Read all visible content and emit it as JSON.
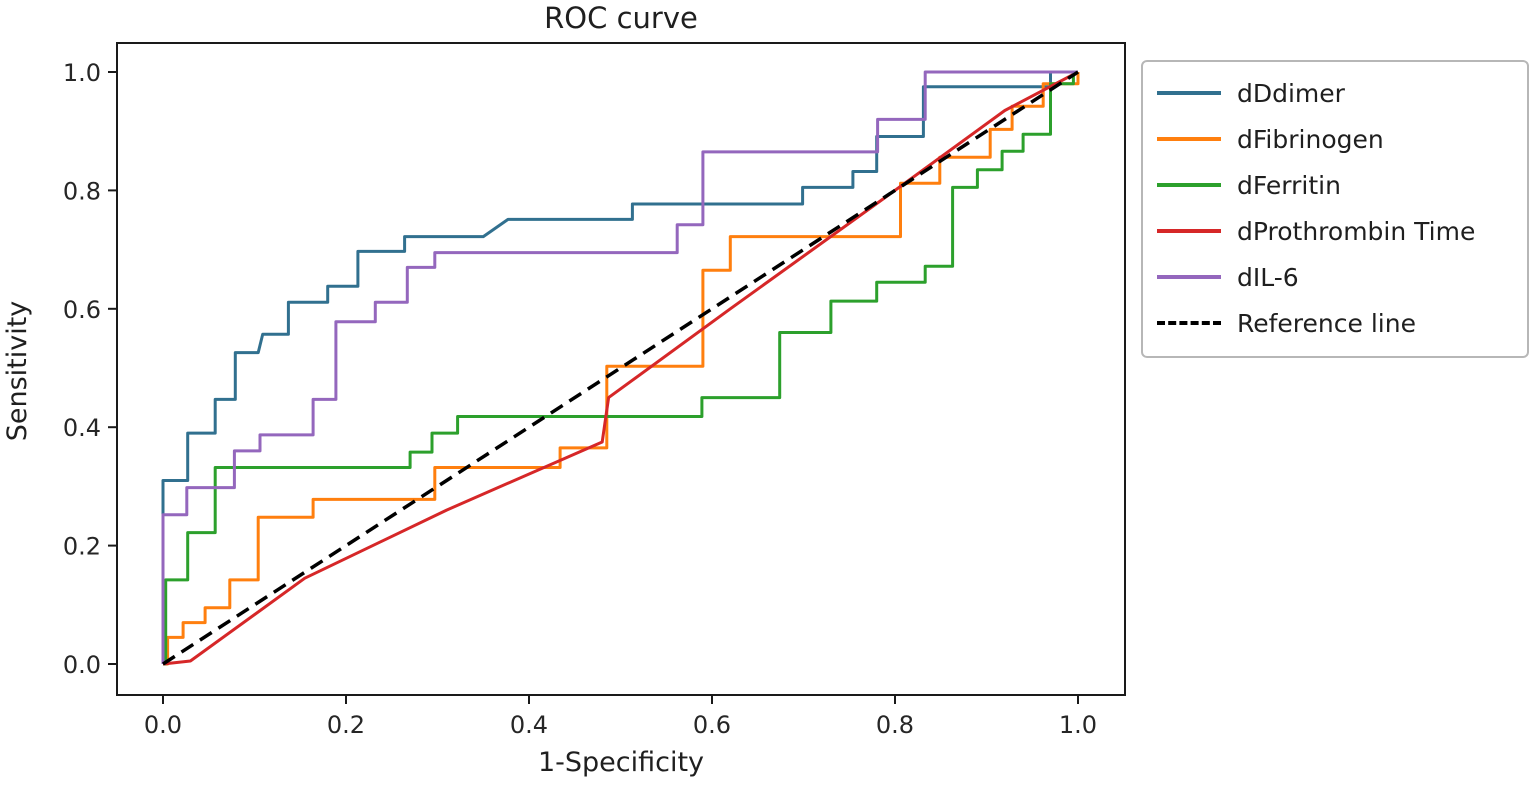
{
  "chart_data": {
    "type": "line",
    "title": "ROC curve",
    "xlabel": "1-Specificity",
    "ylabel": "Sensitivity",
    "xlim": [
      -0.045,
      1.05
    ],
    "ylim": [
      -0.045,
      1.05
    ],
    "grid": false,
    "legend_position": "outside-right",
    "xticks": {
      "values": [
        0.0,
        0.2,
        0.4,
        0.6,
        0.8,
        1.0
      ],
      "labels": [
        "0.0",
        "0.2",
        "0.4",
        "0.6",
        "0.8",
        "1.0"
      ]
    },
    "yticks": {
      "values": [
        0.0,
        0.2,
        0.4,
        0.6,
        0.8,
        1.0
      ],
      "labels": [
        "0.0",
        "0.2",
        "0.4",
        "0.6",
        "0.8",
        "1.0"
      ]
    },
    "axis_color": "#1a1a1a",
    "legend_border_color": "#b7b7b7",
    "series": [
      {
        "name": "dDdimer",
        "color": "#31708f",
        "style": "solid",
        "points": [
          [
            0,
            0
          ],
          [
            0,
            0.31
          ],
          [
            0.027,
            0.31
          ],
          [
            0.027,
            0.39
          ],
          [
            0.057,
            0.39
          ],
          [
            0.057,
            0.447
          ],
          [
            0.079,
            0.447
          ],
          [
            0.079,
            0.526
          ],
          [
            0.104,
            0.526
          ],
          [
            0.109,
            0.557
          ],
          [
            0.137,
            0.557
          ],
          [
            0.137,
            0.611
          ],
          [
            0.18,
            0.611
          ],
          [
            0.18,
            0.638
          ],
          [
            0.213,
            0.638
          ],
          [
            0.213,
            0.697
          ],
          [
            0.264,
            0.697
          ],
          [
            0.264,
            0.722
          ],
          [
            0.35,
            0.722
          ],
          [
            0.377,
            0.751
          ],
          [
            0.513,
            0.751
          ],
          [
            0.513,
            0.777
          ],
          [
            0.699,
            0.777
          ],
          [
            0.699,
            0.805
          ],
          [
            0.754,
            0.805
          ],
          [
            0.754,
            0.832
          ],
          [
            0.78,
            0.832
          ],
          [
            0.78,
            0.891
          ],
          [
            0.831,
            0.891
          ],
          [
            0.831,
            0.975
          ],
          [
            0.97,
            0.975
          ],
          [
            0.97,
            1
          ],
          [
            1,
            1
          ]
        ]
      },
      {
        "name": "dFibrinogen",
        "color": "#ff7f0e",
        "style": "solid",
        "points": [
          [
            0,
            0
          ],
          [
            0.005,
            0
          ],
          [
            0.005,
            0.045
          ],
          [
            0.022,
            0.045
          ],
          [
            0.022,
            0.07
          ],
          [
            0.046,
            0.07
          ],
          [
            0.046,
            0.095
          ],
          [
            0.073,
            0.095
          ],
          [
            0.073,
            0.142
          ],
          [
            0.104,
            0.142
          ],
          [
            0.104,
            0.248
          ],
          [
            0.164,
            0.248
          ],
          [
            0.164,
            0.278
          ],
          [
            0.297,
            0.278
          ],
          [
            0.297,
            0.332
          ],
          [
            0.434,
            0.332
          ],
          [
            0.434,
            0.365
          ],
          [
            0.485,
            0.365
          ],
          [
            0.485,
            0.503
          ],
          [
            0.59,
            0.503
          ],
          [
            0.59,
            0.665
          ],
          [
            0.62,
            0.665
          ],
          [
            0.62,
            0.722
          ],
          [
            0.806,
            0.722
          ],
          [
            0.806,
            0.812
          ],
          [
            0.849,
            0.812
          ],
          [
            0.849,
            0.856
          ],
          [
            0.904,
            0.856
          ],
          [
            0.904,
            0.903
          ],
          [
            0.928,
            0.903
          ],
          [
            0.928,
            0.942
          ],
          [
            0.962,
            0.942
          ],
          [
            0.962,
            0.98
          ],
          [
            1,
            0.98
          ],
          [
            1,
            1
          ]
        ]
      },
      {
        "name": "dFerritin",
        "color": "#2ca02c",
        "style": "solid",
        "points": [
          [
            0,
            0
          ],
          [
            0.003,
            0
          ],
          [
            0.003,
            0.142
          ],
          [
            0.027,
            0.142
          ],
          [
            0.027,
            0.222
          ],
          [
            0.057,
            0.222
          ],
          [
            0.057,
            0.332
          ],
          [
            0.27,
            0.332
          ],
          [
            0.27,
            0.358
          ],
          [
            0.294,
            0.358
          ],
          [
            0.294,
            0.39
          ],
          [
            0.322,
            0.39
          ],
          [
            0.322,
            0.418
          ],
          [
            0.589,
            0.418
          ],
          [
            0.589,
            0.45
          ],
          [
            0.674,
            0.45
          ],
          [
            0.674,
            0.56
          ],
          [
            0.73,
            0.56
          ],
          [
            0.73,
            0.613
          ],
          [
            0.78,
            0.613
          ],
          [
            0.78,
            0.645
          ],
          [
            0.833,
            0.645
          ],
          [
            0.833,
            0.672
          ],
          [
            0.863,
            0.672
          ],
          [
            0.863,
            0.805
          ],
          [
            0.89,
            0.805
          ],
          [
            0.89,
            0.835
          ],
          [
            0.917,
            0.835
          ],
          [
            0.917,
            0.866
          ],
          [
            0.94,
            0.866
          ],
          [
            0.94,
            0.895
          ],
          [
            0.97,
            0.895
          ],
          [
            0.97,
            0.98
          ],
          [
            0.995,
            0.98
          ],
          [
            0.995,
            1
          ],
          [
            1,
            1
          ]
        ]
      },
      {
        "name": "dProthrombin Time",
        "color": "#d62728",
        "style": "solid",
        "points": [
          [
            0,
            0
          ],
          [
            0.03,
            0.005
          ],
          [
            0.155,
            0.145
          ],
          [
            0.31,
            0.26
          ],
          [
            0.48,
            0.375
          ],
          [
            0.487,
            0.45
          ],
          [
            0.62,
            0.6
          ],
          [
            0.8,
            0.8
          ],
          [
            0.92,
            0.935
          ],
          [
            1,
            1
          ]
        ]
      },
      {
        "name": "dIL-6",
        "color": "#9467bd",
        "style": "solid",
        "points": [
          [
            0,
            0
          ],
          [
            0,
            0.252
          ],
          [
            0.026,
            0.252
          ],
          [
            0.026,
            0.298
          ],
          [
            0.078,
            0.298
          ],
          [
            0.078,
            0.36
          ],
          [
            0.106,
            0.36
          ],
          [
            0.106,
            0.387
          ],
          [
            0.164,
            0.387
          ],
          [
            0.164,
            0.447
          ],
          [
            0.189,
            0.447
          ],
          [
            0.189,
            0.578
          ],
          [
            0.232,
            0.578
          ],
          [
            0.232,
            0.611
          ],
          [
            0.267,
            0.611
          ],
          [
            0.267,
            0.67
          ],
          [
            0.297,
            0.67
          ],
          [
            0.297,
            0.695
          ],
          [
            0.562,
            0.695
          ],
          [
            0.562,
            0.742
          ],
          [
            0.59,
            0.742
          ],
          [
            0.59,
            0.865
          ],
          [
            0.781,
            0.865
          ],
          [
            0.781,
            0.92
          ],
          [
            0.833,
            0.92
          ],
          [
            0.833,
            1
          ],
          [
            1,
            1
          ]
        ]
      },
      {
        "name": "Reference line",
        "color": "#000000",
        "style": "dashed",
        "points": [
          [
            0,
            0
          ],
          [
            1,
            1
          ]
        ]
      }
    ]
  }
}
